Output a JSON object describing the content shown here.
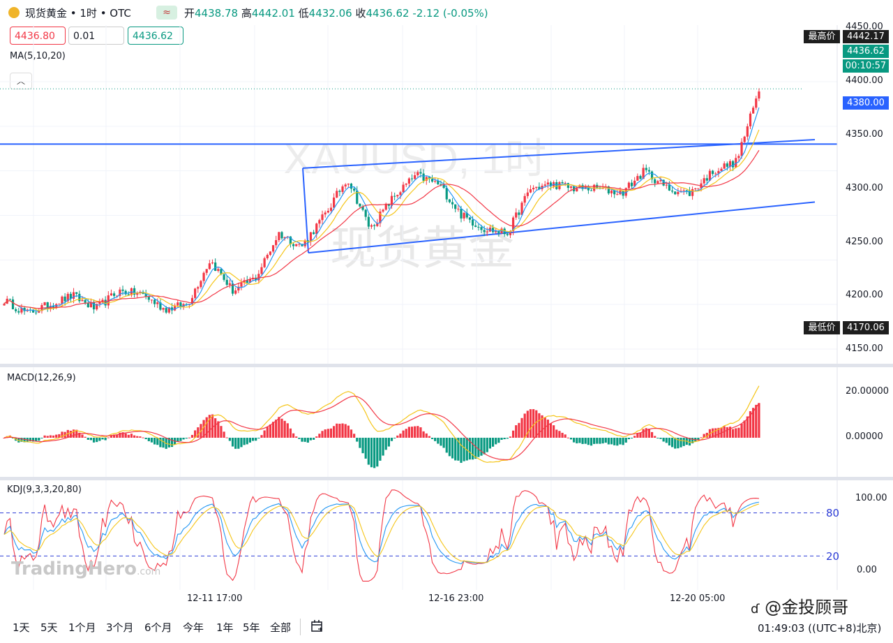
{
  "header": {
    "symbol_title": "现货黄金 • 1时 • OTC",
    "change_glyph": "≈",
    "open_label": "开",
    "open": "4438.78",
    "high_label": "高",
    "high": "4442.01",
    "low_label": "低",
    "low": "4432.06",
    "close_label": "收",
    "close": "4436.62",
    "change": "-2.12 (-0.05%)"
  },
  "quote": {
    "bid": "4436.80",
    "spread": "0.01",
    "ask": "4436.62"
  },
  "indicators": {
    "ma_label": "MA(5,10,20)",
    "macd_label": "MACD(12,26,9)",
    "kdj_label": "KDJ(9,3,3,20,80)"
  },
  "collapse_icon": "chevron-up-icon",
  "watermark": {
    "symbol": "XAUUSD, 1时",
    "name": "现货黄金",
    "brand": "TradingHero",
    "brand_suffix": ".com",
    "overlay": "金投顾哥"
  },
  "price_tags": {
    "max_label": "最高价",
    "max_value": "4442.17",
    "last": "4436.62",
    "countdown": "00:10:57",
    "hline": "4380.00",
    "min_label": "最低价",
    "min_value": "4170.06"
  },
  "colors": {
    "up": "#f23645",
    "down": "#089981",
    "ma5": "#2196f3",
    "ma10": "#f5c518",
    "ma20": "#f23645",
    "trend": "#2962ff"
  },
  "chart_data": [
    {
      "type": "candlestick",
      "symbol": "XAUUSD",
      "ylim": [
        4140,
        4455
      ],
      "yticks": [
        "4450.00",
        "4400.00",
        "4350.00",
        "4300.00",
        "4250.00",
        "4200.00",
        "4150.00"
      ],
      "xticks": [
        "12-11 17:00",
        "12-16 23:00",
        "12-20 05:00"
      ],
      "anchors": [
        4205,
        4190,
        4200,
        4210,
        4195,
        4215,
        4212,
        4195,
        4200,
        4250,
        4215,
        4230,
        4280,
        4265,
        4300,
        4342,
        4285,
        4320,
        4345,
        4335,
        4300,
        4285,
        4280,
        4330,
        4335,
        4330,
        4330,
        4325,
        4350,
        4330,
        4325,
        4350,
        4360,
        4440
      ],
      "horizontal_line": 4380.0,
      "channel_upper": [
        [
          4353,
          4385
        ]
      ],
      "channel_lower": [
        [
          4258,
          4315
        ]
      ]
    },
    {
      "type": "macd",
      "params": "12,26,9",
      "yticks": [
        "20.00000",
        "0.00000"
      ]
    },
    {
      "type": "kdj",
      "params": "9,3,3,20,80",
      "yticks": [
        "100.00",
        "0.00"
      ],
      "levels": [
        "80",
        "20"
      ]
    }
  ],
  "timeframes": [
    "1天",
    "5天",
    "1个月",
    "3个月",
    "6个月",
    "今年",
    "1年",
    "5年",
    "全部"
  ],
  "compare_icon": "calendar-range-icon",
  "clock": "01:49:03 ((UTC+8)北京)"
}
